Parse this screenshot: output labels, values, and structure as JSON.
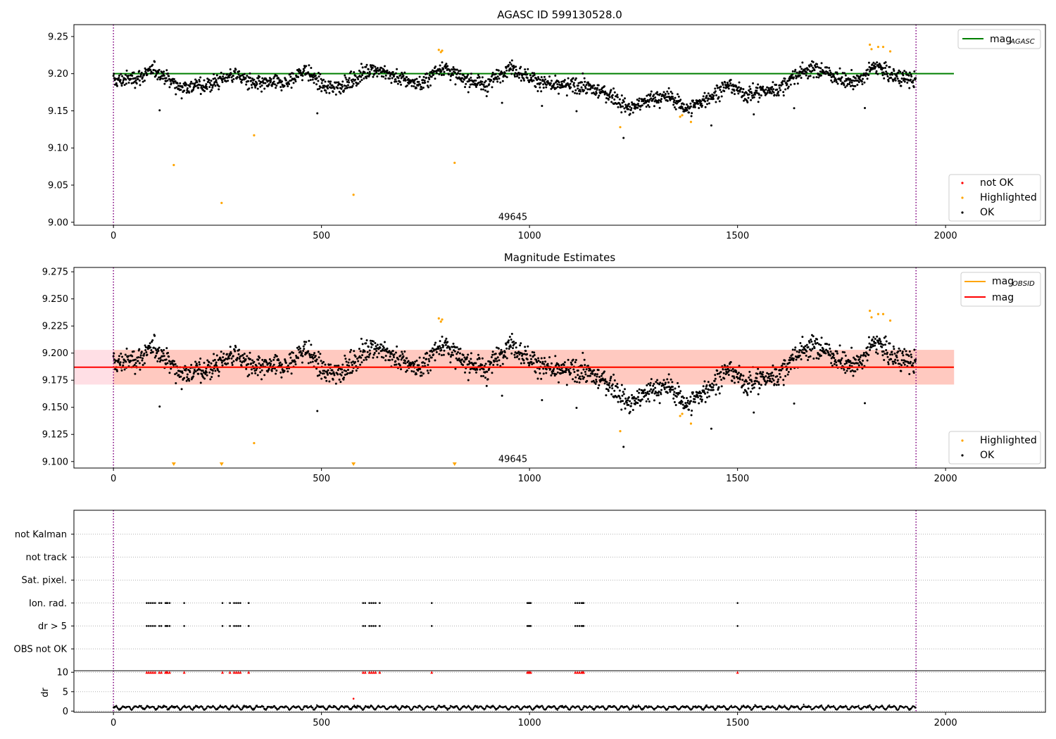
{
  "chart_data": [
    {
      "type": "scatter",
      "title": "AGASC ID 599130528.0",
      "xlim": [
        -95,
        2240
      ],
      "ylim": [
        8.996,
        9.266
      ],
      "xticks": [
        0,
        500,
        1000,
        1500,
        2000
      ],
      "xtick_labels": [
        "0",
        "500",
        "1000",
        "1500",
        "2000"
      ],
      "yticks": [
        9.0,
        9.05,
        9.1,
        9.15,
        9.2,
        9.25
      ],
      "ytick_labels": [
        "9.00",
        "9.05",
        "9.10",
        "9.15",
        "9.20",
        "9.25"
      ],
      "vlines": [
        0,
        1929
      ],
      "hline": {
        "name": "mag",
        "subscript": "AGASC",
        "value": 9.2,
        "x": [
          0,
          2020
        ],
        "color": "#008000"
      },
      "annotation": {
        "text": "49645",
        "x": 960,
        "y": 9.007
      },
      "series": [
        {
          "name": "OK",
          "color": "#000000",
          "trend": "mag",
          "n": 1929
        },
        {
          "name": "Highlighted",
          "color": "#ffa500",
          "points": [
            [
              145,
              9.077
            ],
            [
              260,
              9.026
            ],
            [
              338,
              9.117
            ],
            [
              577,
              9.037
            ],
            [
              782,
              9.232
            ],
            [
              787,
              9.229
            ],
            [
              790,
              9.231
            ],
            [
              820,
              9.08
            ],
            [
              1218,
              9.128
            ],
            [
              1362,
              9.142
            ],
            [
              1367,
              9.144
            ],
            [
              1388,
              9.135
            ],
            [
              1818,
              9.239
            ],
            [
              1822,
              9.233
            ],
            [
              1838,
              9.236
            ],
            [
              1850,
              9.236
            ],
            [
              1867,
              9.23
            ]
          ]
        },
        {
          "name": "not OK",
          "color": "#ff0000",
          "points": []
        }
      ],
      "legend_lines": [
        {
          "name": "mag",
          "subscript": "AGASC",
          "color": "#008000"
        }
      ],
      "legend_markers": [
        {
          "name": "not OK",
          "color": "#ff0000"
        },
        {
          "name": "Highlighted",
          "color": "#ffa500"
        },
        {
          "name": "OK",
          "color": "#000000"
        }
      ]
    },
    {
      "type": "scatter",
      "title": "Magnitude Estimates",
      "xlim": [
        -95,
        2240
      ],
      "ylim": [
        9.094,
        9.279
      ],
      "xticks": [
        0,
        500,
        1000,
        1500,
        2000
      ],
      "xtick_labels": [
        "0",
        "500",
        "1000",
        "1500",
        "2000"
      ],
      "yticks": [
        9.1,
        9.125,
        9.15,
        9.175,
        9.2,
        9.225,
        9.25,
        9.275
      ],
      "ytick_labels": [
        "9.100",
        "9.125",
        "9.150",
        "9.175",
        "9.200",
        "9.225",
        "9.250",
        "9.275"
      ],
      "vlines": [
        0,
        1929
      ],
      "hlines": [
        {
          "name": "mag",
          "subscript": "OBSID",
          "value": 9.187,
          "x": [
            0,
            2020
          ],
          "color": "#ffa500"
        },
        {
          "name": "mag",
          "value": 9.187,
          "x": [
            -95,
            2020
          ],
          "color": "#ff0000"
        }
      ],
      "bands": [
        {
          "from": 9.171,
          "to": 9.203,
          "x": [
            -95,
            2020
          ],
          "color": "#ffc0cb",
          "opacity": 0.5
        },
        {
          "from": 9.171,
          "to": 9.203,
          "x": [
            0,
            2020
          ],
          "color": "#ffa07a",
          "opacity": 0.35
        }
      ],
      "annotation": {
        "text": "49645",
        "x": 960,
        "y": 9.102
      },
      "clipped_markers_x": [
        145,
        260,
        577,
        820
      ],
      "series": [
        {
          "name": "OK",
          "color": "#000000",
          "trend": "mag",
          "n": 1929
        },
        {
          "name": "Highlighted",
          "color": "#ffa500",
          "points": [
            [
              338,
              9.117
            ],
            [
              782,
              9.232
            ],
            [
              787,
              9.229
            ],
            [
              790,
              9.231
            ],
            [
              1218,
              9.128
            ],
            [
              1362,
              9.142
            ],
            [
              1367,
              9.144
            ],
            [
              1388,
              9.135
            ],
            [
              1818,
              9.239
            ],
            [
              1822,
              9.233
            ],
            [
              1838,
              9.236
            ],
            [
              1850,
              9.236
            ],
            [
              1867,
              9.23
            ]
          ]
        }
      ],
      "legend_lines": [
        {
          "name": "mag",
          "subscript": "OBSID",
          "color": "#ffa500"
        },
        {
          "name": "mag",
          "color": "#ff0000"
        }
      ],
      "legend_markers": [
        {
          "name": "Highlighted",
          "color": "#ffa500"
        },
        {
          "name": "OK",
          "color": "#000000"
        }
      ]
    },
    {
      "type": "scatter",
      "title": "",
      "xlim": [
        -95,
        2240
      ],
      "xticks": [
        0,
        500,
        1000,
        1500,
        2000
      ],
      "xtick_labels": [
        "0",
        "500",
        "1000",
        "1500",
        "2000"
      ],
      "vlines": [
        0,
        1929
      ],
      "flag_rows": [
        "not Kalman",
        "not track",
        "Sat. pixel.",
        "Ion. rad.",
        "dr > 5",
        "OBS not OK"
      ],
      "flag_events_x": [
        80,
        85,
        90,
        95,
        100,
        110,
        115,
        125,
        128,
        130,
        135,
        170,
        262,
        280,
        290,
        295,
        300,
        305,
        325,
        600,
        605,
        615,
        620,
        625,
        630,
        640,
        765,
        995,
        998,
        1000,
        1003,
        1110,
        1115,
        1120,
        1125,
        1128,
        1130,
        1500
      ],
      "flagged_rows": [
        "Ion. rad.",
        "dr > 5"
      ],
      "dr_panel": {
        "ylabel": "dr",
        "ylim": [
          -0.3,
          10.4
        ],
        "yticks": [
          0,
          5,
          10
        ],
        "ytick_labels": [
          "0",
          "5",
          "10"
        ],
        "threshold": 10,
        "outliers": [
          [
            577,
            3.2
          ]
        ],
        "color": "#000000",
        "flag_color": "#ff0000"
      }
    }
  ]
}
